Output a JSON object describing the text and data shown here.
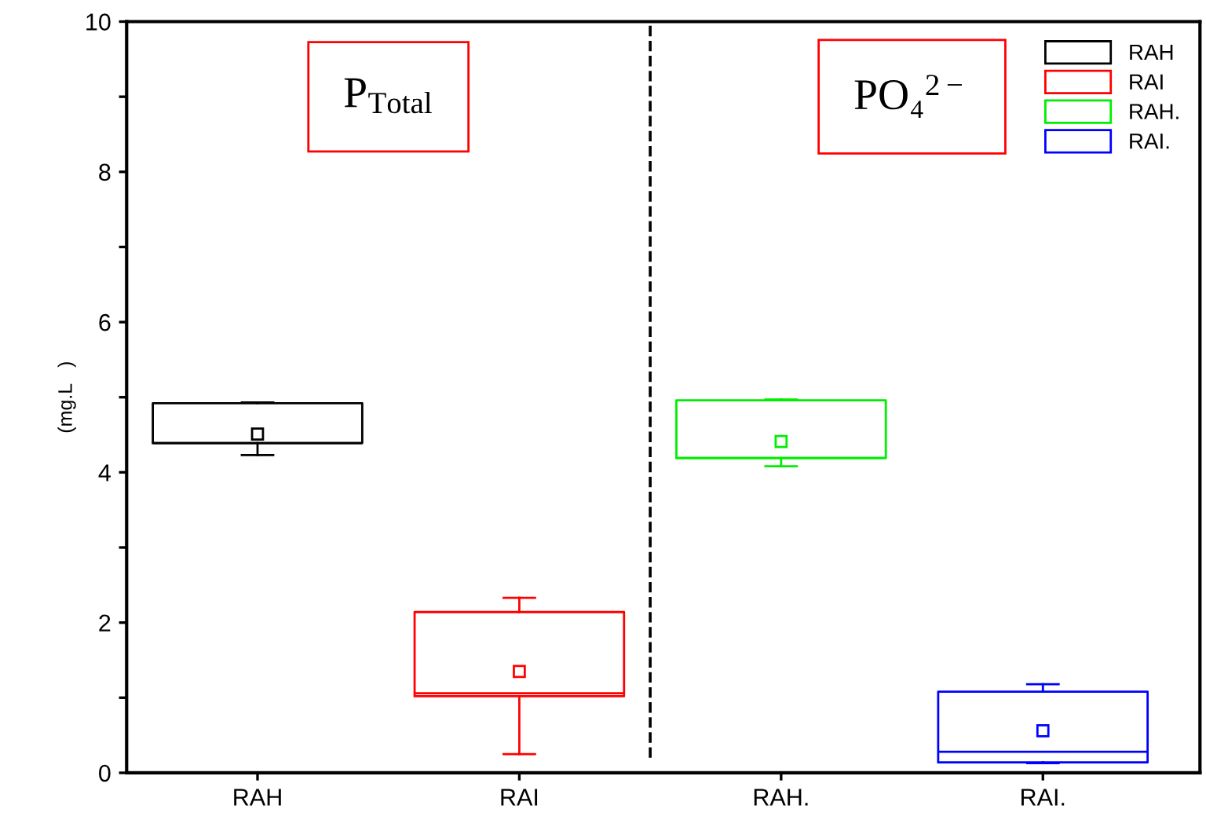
{
  "chart_data": {
    "type": "box",
    "ylabel": "(mg.L   )",
    "categories": [
      "RAH",
      "RAI",
      "RAH.",
      "RAI."
    ],
    "series": [
      {
        "name": "RAH",
        "color": "#000000",
        "boxes": [
          {
            "low": 4.23,
            "q1": 4.39,
            "median": 4.39,
            "q3": 4.92,
            "high": 4.93,
            "mean": 4.51
          },
          null,
          null,
          null
        ]
      },
      {
        "name": "RAI",
        "color": "#ff0000",
        "boxes": [
          null,
          {
            "low": 0.25,
            "q1": 1.02,
            "median": 1.06,
            "q3": 2.14,
            "high": 2.33,
            "mean": 1.35
          },
          null,
          null
        ]
      },
      {
        "name": "RAH.",
        "color": "#00ee00",
        "boxes": [
          null,
          null,
          {
            "low": 4.08,
            "q1": 4.19,
            "median": 4.19,
            "q3": 4.96,
            "high": 4.97,
            "mean": 4.41
          },
          null
        ]
      },
      {
        "name": "RAI.",
        "color": "#0000ff",
        "boxes": [
          null,
          null,
          null,
          {
            "low": 0.13,
            "q1": 0.14,
            "median": 0.28,
            "q3": 1.08,
            "high": 1.18,
            "mean": 0.56
          }
        ]
      }
    ],
    "ylim": [
      0,
      10
    ],
    "yticks": [
      0,
      {
        "value": 1,
        "label": null
      },
      2,
      {
        "value": 3,
        "label": null
      },
      4,
      {
        "value": 5,
        "label": null
      },
      6,
      {
        "value": 7,
        "label": null
      },
      8,
      {
        "value": 9,
        "label": null
      },
      10
    ],
    "annotations": [
      "P$_{Total}$",
      "PO₄$^{2−}$"
    ],
    "legend": "top right",
    "grid": false
  }
}
